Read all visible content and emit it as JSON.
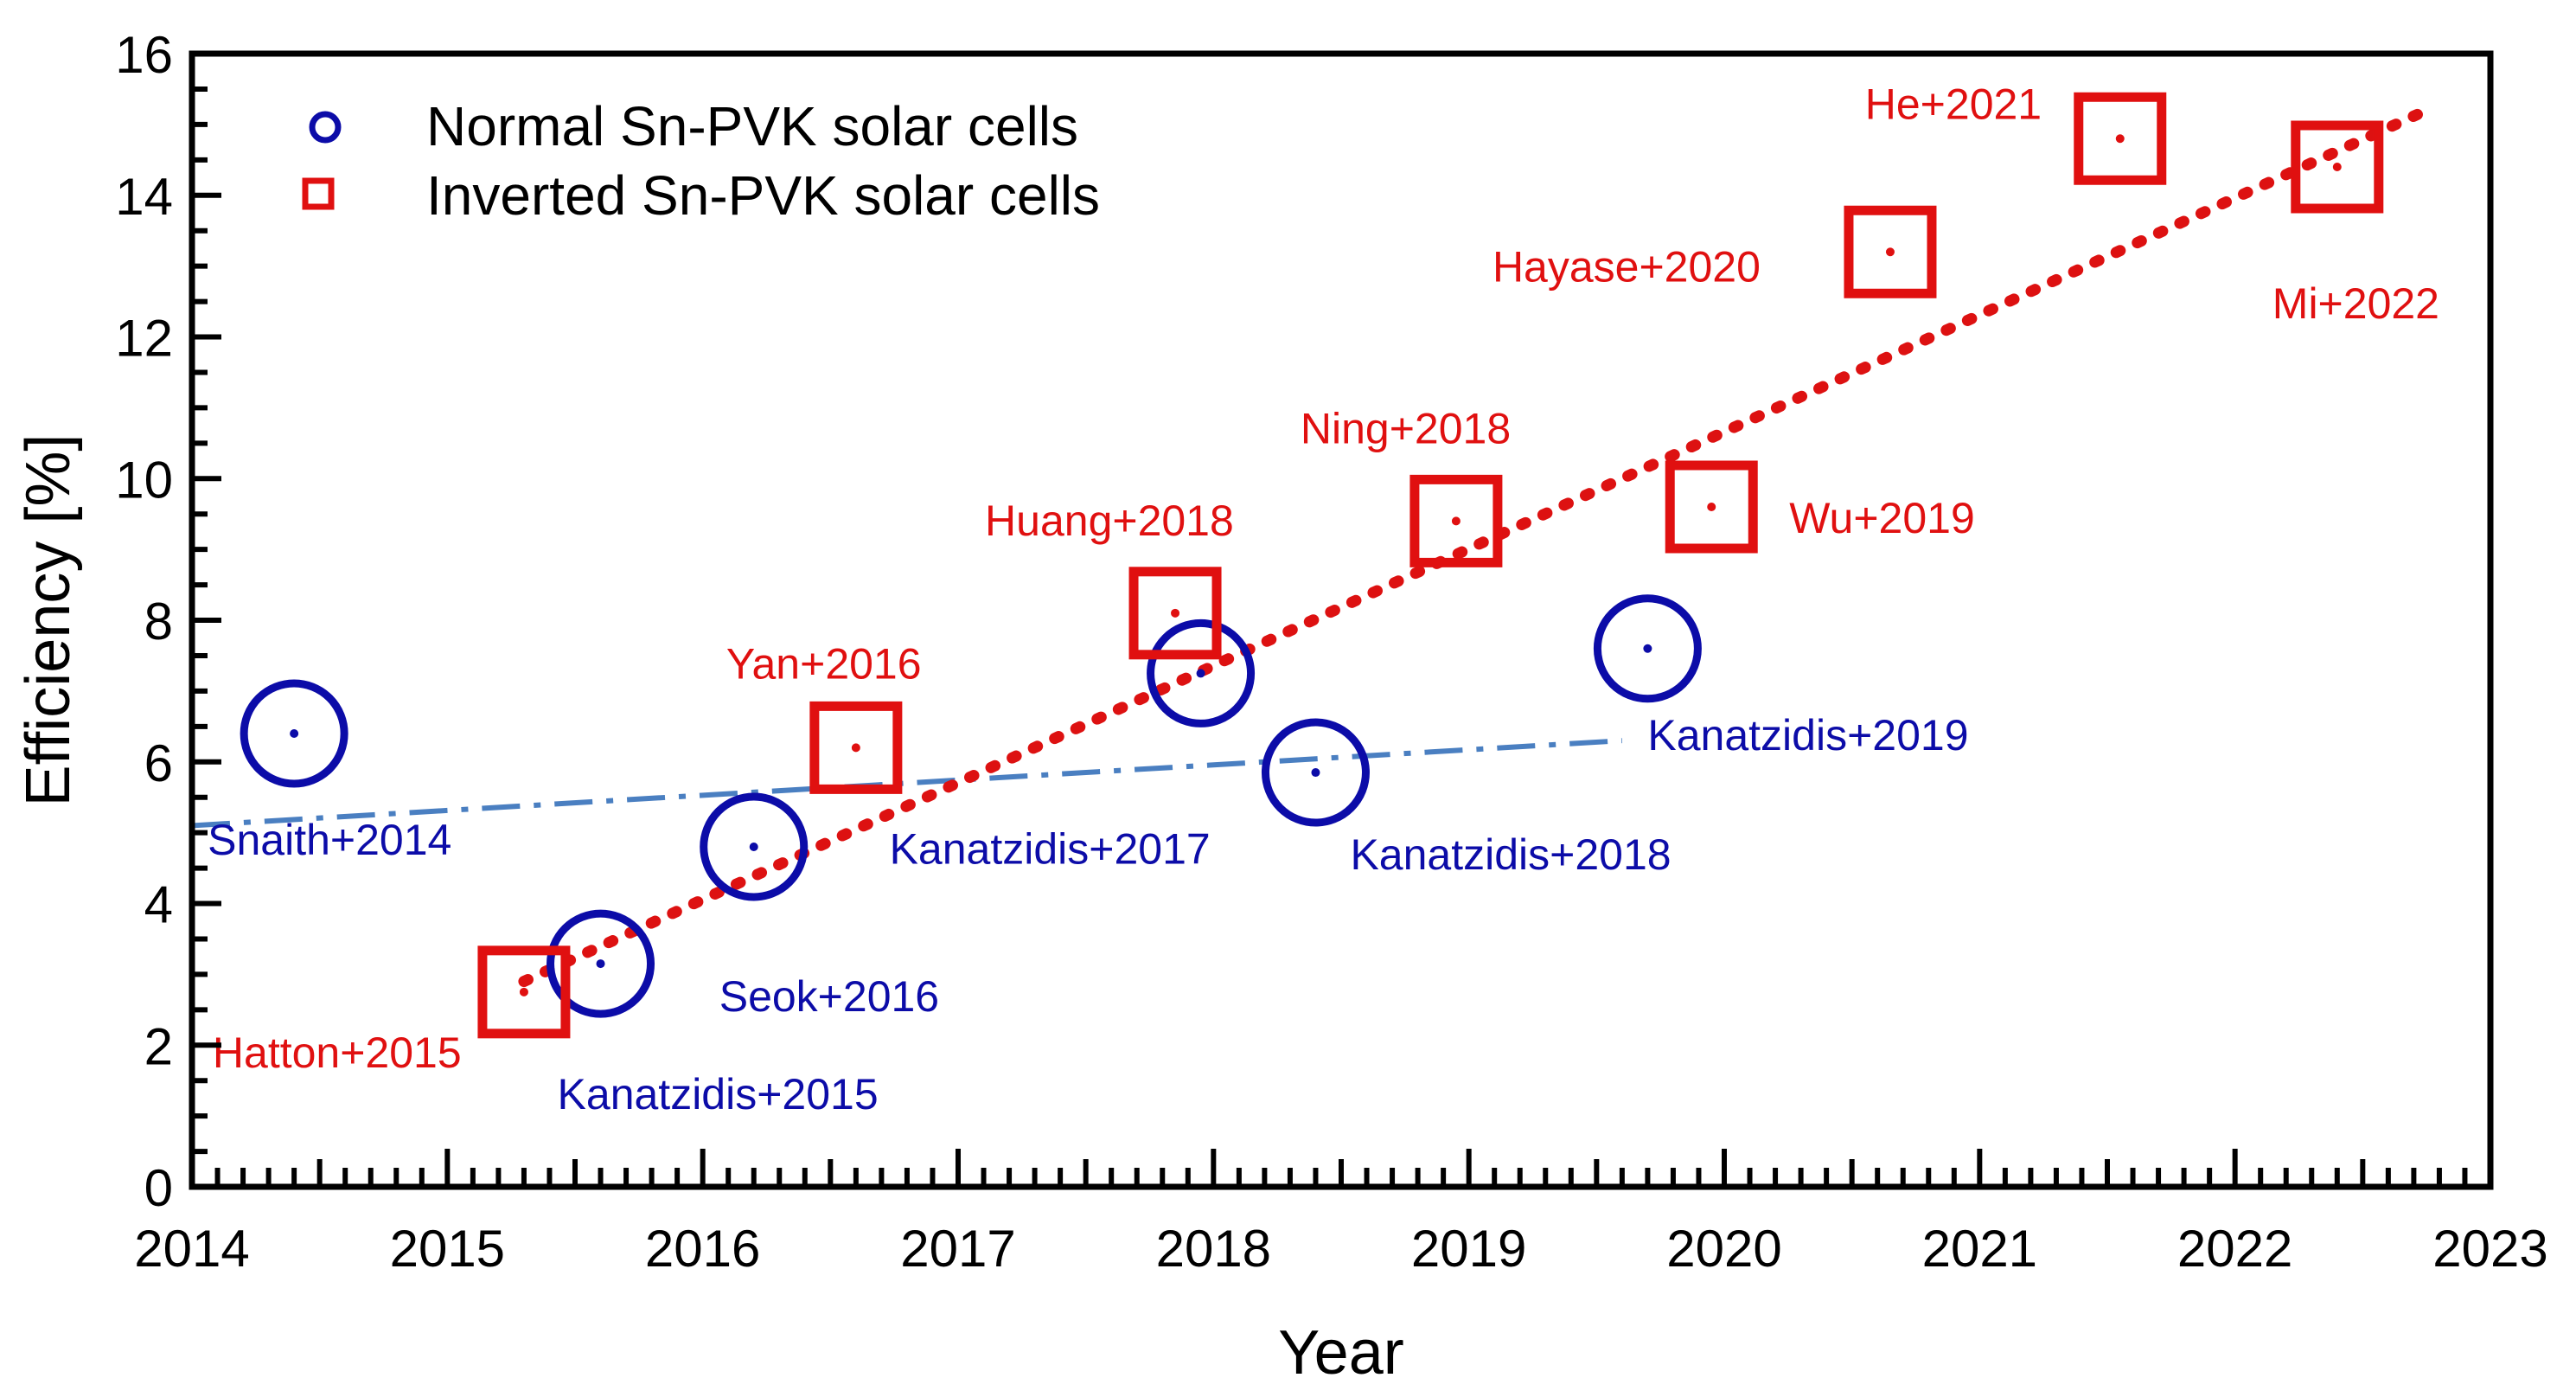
{
  "chart_data": {
    "type": "scatter",
    "xlabel": "Year",
    "ylabel": "Efficiency [%]",
    "xlim": [
      2014,
      2023
    ],
    "ylim": [
      0,
      16
    ],
    "xticks": [
      "2014",
      "2015",
      "2016",
      "2017",
      "2018",
      "2019",
      "2020",
      "2021",
      "2022",
      "2023"
    ],
    "yticks": [
      "0",
      "2",
      "4",
      "6",
      "8",
      "10",
      "12",
      "14",
      "16"
    ],
    "grid": false,
    "legend": "top-left",
    "series": [
      {
        "name": "Normal Sn-PVK solar cells",
        "marker": "circle",
        "color": "#0c0ca8",
        "points": [
          {
            "x": 2014.4,
            "y": 6.4,
            "label": "Snaith+2014"
          },
          {
            "x": 2015.6,
            "y": 3.15,
            "label": "Kanatzidis+2015"
          },
          {
            "x": 2016.2,
            "y": 4.8,
            "label": "Seok+2016"
          },
          {
            "x": 2017.95,
            "y": 7.25,
            "label": "Kanatzidis+2017"
          },
          {
            "x": 2018.4,
            "y": 5.85,
            "label": "Kanatzidis+2018"
          },
          {
            "x": 2019.7,
            "y": 7.6,
            "label": "Kanatzidis+2019"
          }
        ]
      },
      {
        "name": "Inverted Sn-PVK solar cells",
        "marker": "square",
        "color": "#e01010",
        "points": [
          {
            "x": 2015.3,
            "y": 2.75,
            "label": "Hatton+2015"
          },
          {
            "x": 2016.6,
            "y": 6.2,
            "label": "Yan+2016"
          },
          {
            "x": 2017.85,
            "y": 8.1,
            "label": "Huang+2018"
          },
          {
            "x": 2018.95,
            "y": 9.4,
            "label": "Ning+2018"
          },
          {
            "x": 2019.95,
            "y": 9.6,
            "label": "Wu+2019"
          },
          {
            "x": 2020.65,
            "y": 13.2,
            "label": "Hayase+2020"
          },
          {
            "x": 2021.55,
            "y": 14.8,
            "label": "He+2021"
          },
          {
            "x": 2022.4,
            "y": 14.4,
            "label": "Mi+2022"
          }
        ]
      }
    ],
    "trendlines": [
      {
        "name": "normal-trend",
        "style": "dash-dot",
        "color": "#4a7fc1",
        "from": [
          2014,
          5.1
        ],
        "to": [
          2019.6,
          6.3
        ]
      },
      {
        "name": "inverted-trend",
        "style": "dotted",
        "color": "#dd1111",
        "from": [
          2015.3,
          2.9
        ],
        "to": [
          2022.75,
          15.2
        ]
      }
    ]
  }
}
